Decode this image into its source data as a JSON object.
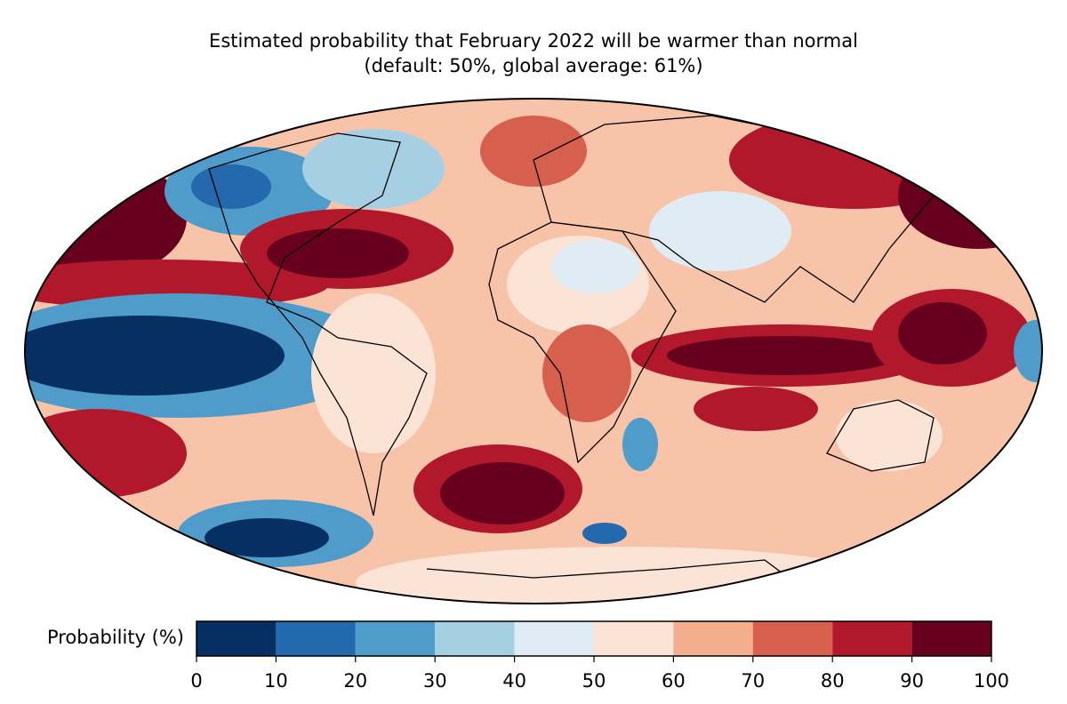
{
  "map": {
    "title": [
      "Estimated probability that February 2022 will be warmer than normal",
      "(default: 50%, global average: 61%)"
    ],
    "colorbar": {
      "label": "Probability (%)",
      "lim": [
        0,
        100
      ],
      "ticks": [
        0,
        10,
        20,
        30,
        40,
        50,
        60,
        70,
        80,
        90,
        100
      ],
      "colors": [
        "#053061",
        "#2468ae",
        "#4f9bc9",
        "#a6cfe4",
        "#e0ecf4",
        "#fbe3d6",
        "#f4ad8d",
        "#d6604d",
        "#b2182b",
        "#67001f"
      ]
    }
  }
}
